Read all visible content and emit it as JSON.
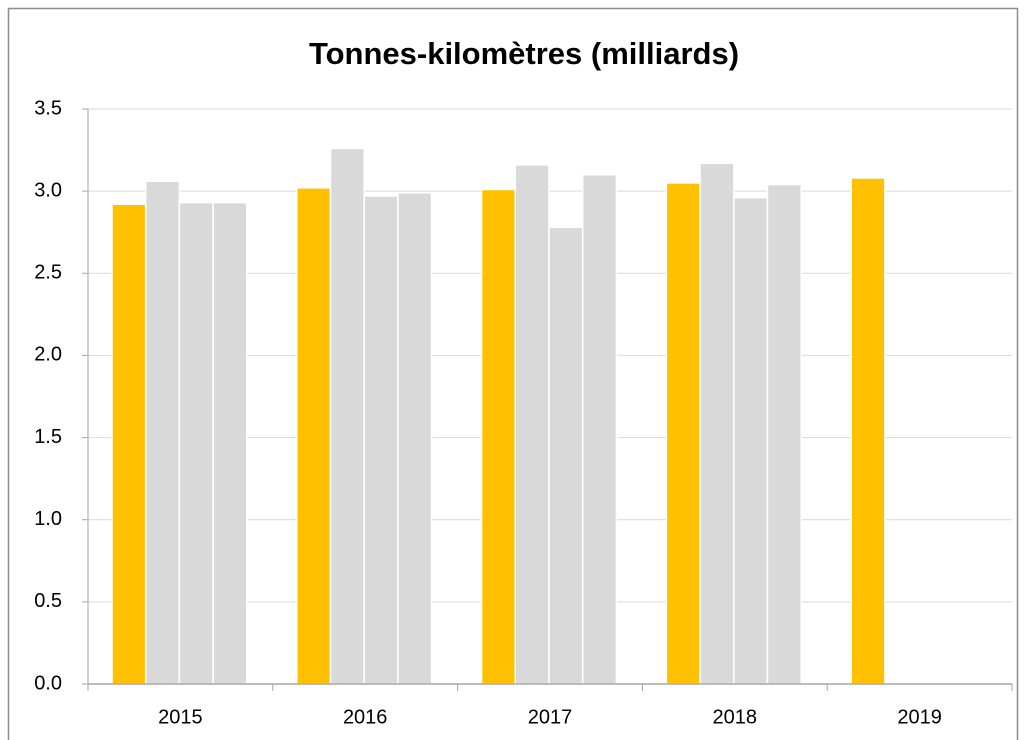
{
  "chart_data": {
    "type": "bar",
    "title": "Tonnes-kilomètres (milliards)",
    "categories": [
      "2015",
      "2016",
      "2017",
      "2018",
      "2019"
    ],
    "series": [
      {
        "color": "#ffc000",
        "values": [
          2.92,
          3.02,
          3.01,
          3.05,
          3.08
        ]
      },
      {
        "color": "#d9d9d9",
        "values": [
          3.06,
          3.26,
          3.16,
          3.17,
          null
        ]
      },
      {
        "color": "#d9d9d9",
        "values": [
          2.93,
          2.97,
          2.78,
          2.96,
          null
        ]
      },
      {
        "color": "#d9d9d9",
        "values": [
          2.93,
          2.99,
          3.1,
          3.04,
          null
        ]
      }
    ],
    "ylim": [
      0,
      3.5
    ],
    "yticks": [
      {
        "value": 0,
        "label": "0.0"
      },
      0.5,
      {
        "value": 1,
        "label": "1.0"
      },
      1.5,
      {
        "value": 2,
        "label": "2.0"
      },
      2.5,
      {
        "value": 3,
        "label": "3.0"
      },
      3.5
    ],
    "grid": true
  }
}
